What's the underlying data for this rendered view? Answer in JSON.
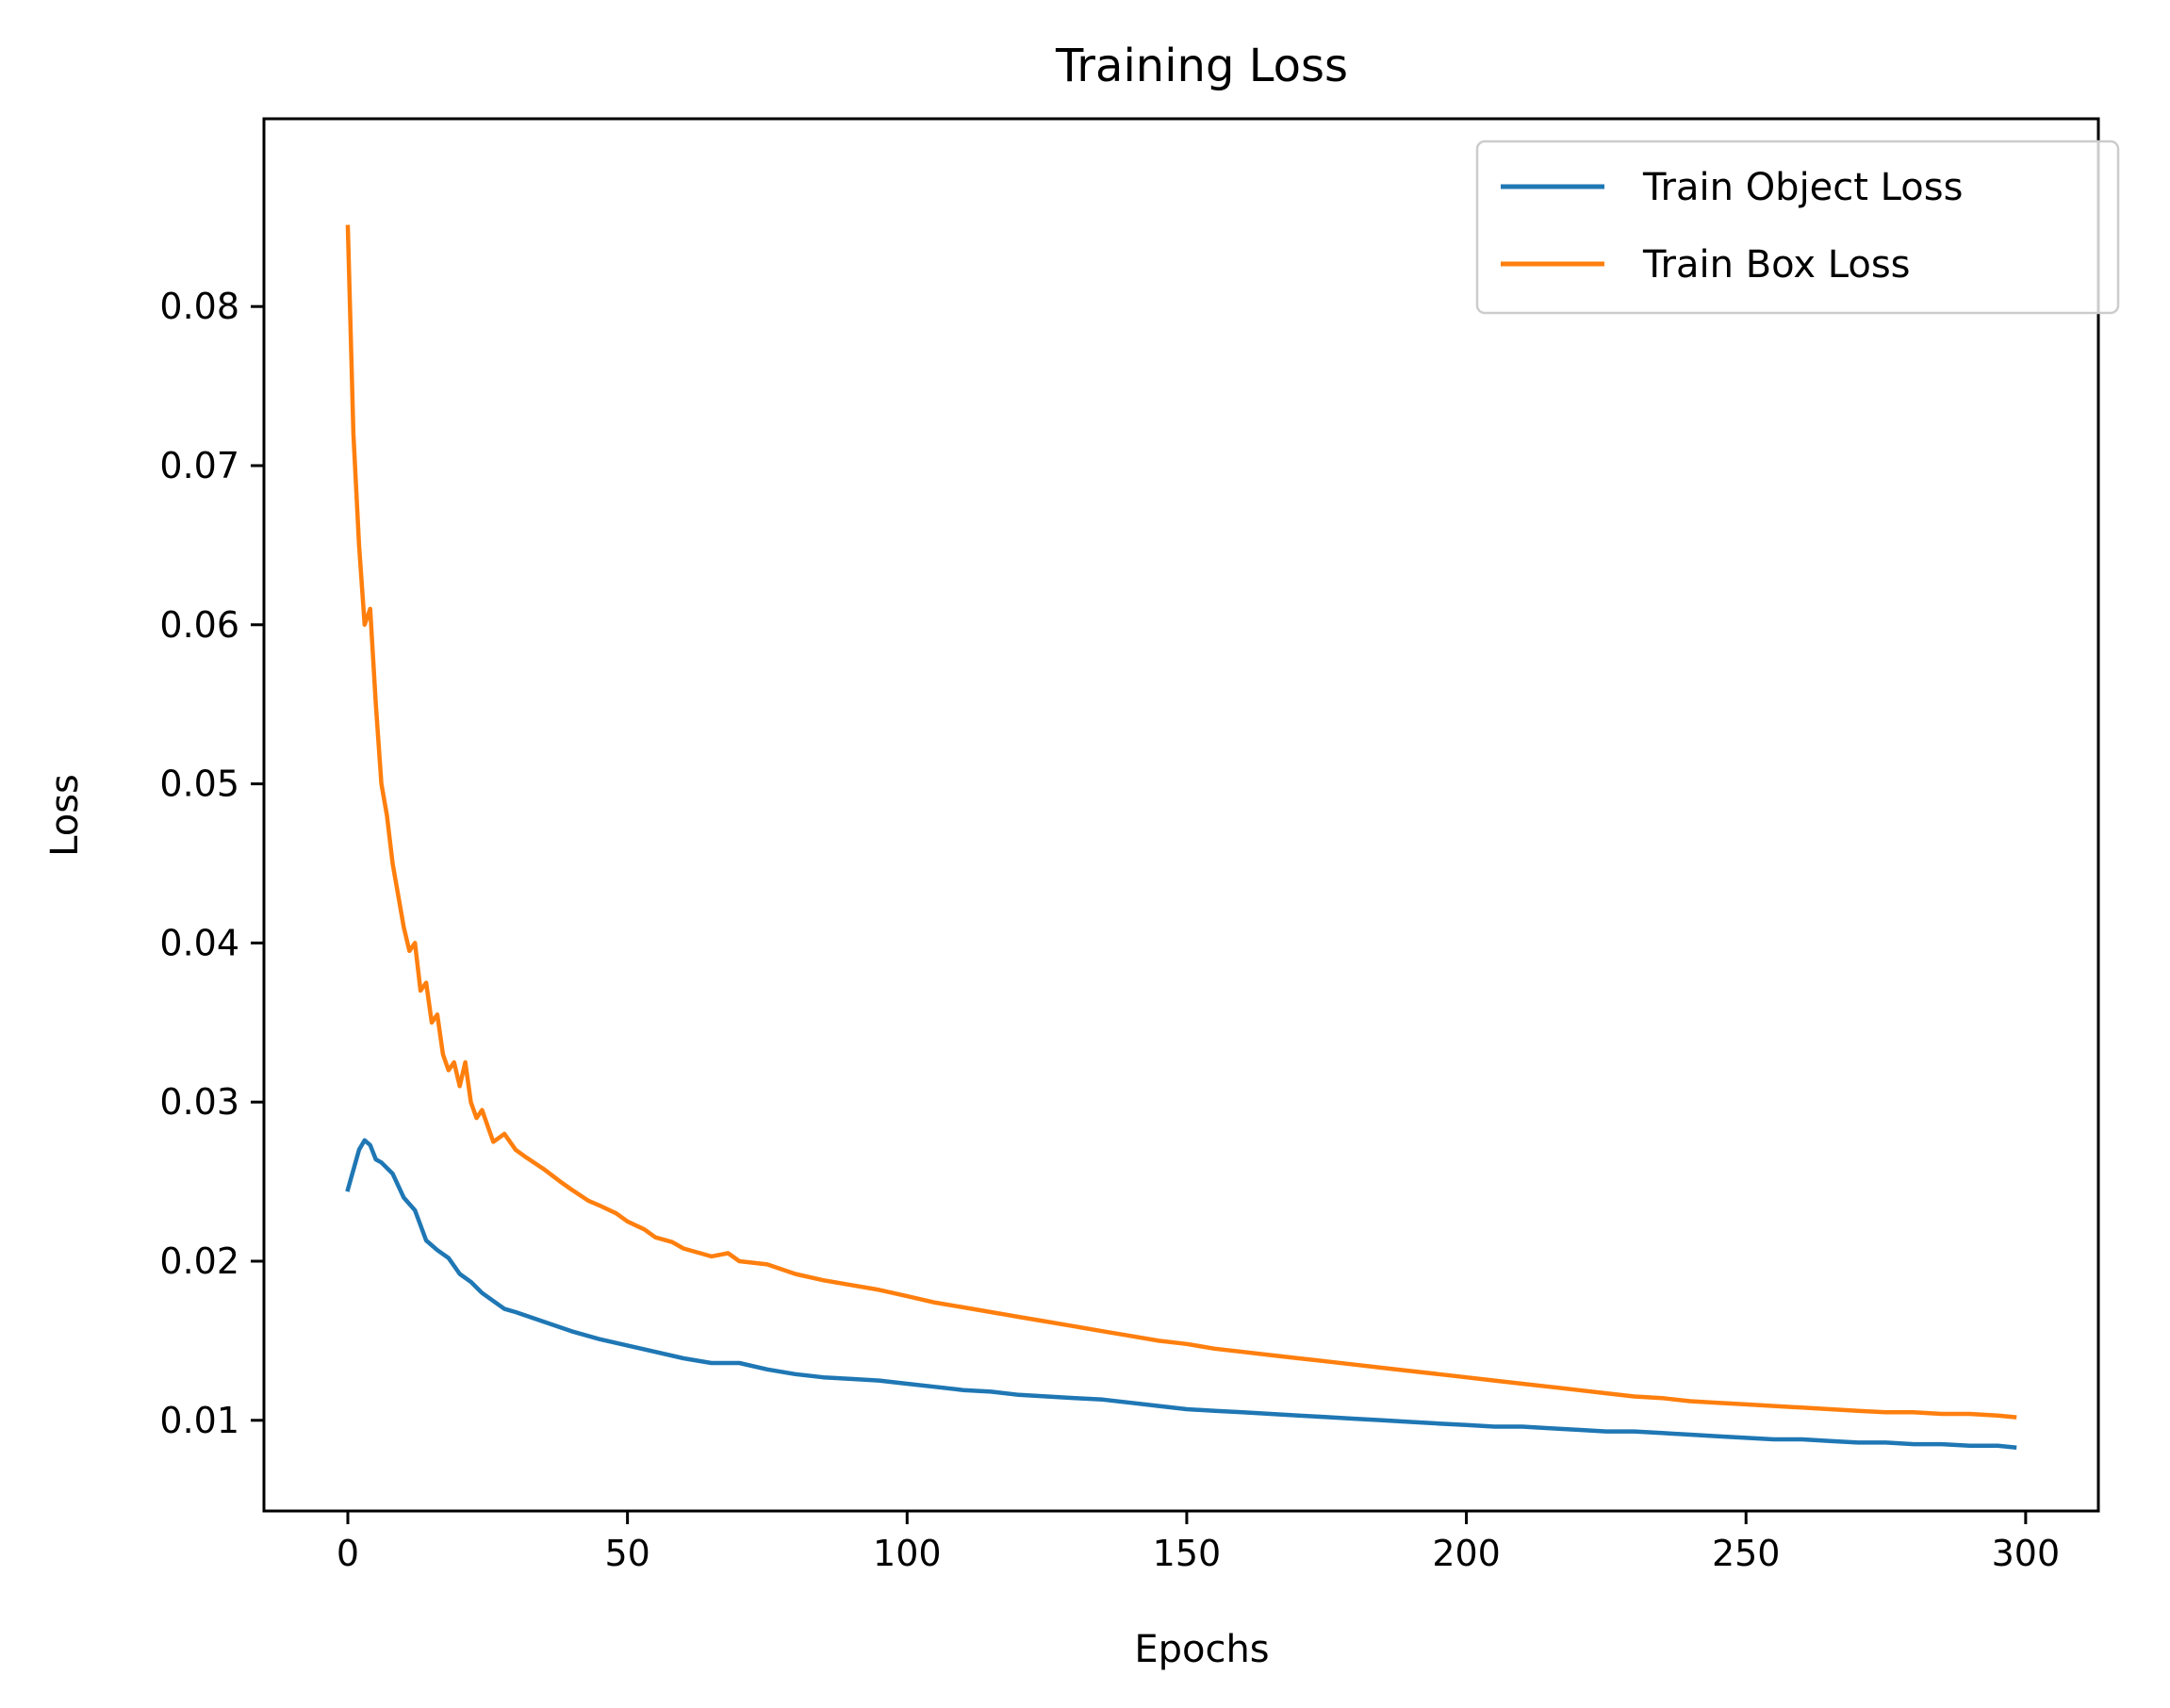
{
  "chart_data": {
    "type": "line",
    "title": "Training Loss",
    "xlabel": "Epochs",
    "ylabel": "Loss",
    "xlim": [
      -15,
      313
    ],
    "ylim": [
      0.0043,
      0.0918
    ],
    "xticks": [
      0,
      50,
      100,
      150,
      200,
      250,
      300
    ],
    "xtick_labels": [
      "0",
      "50",
      "100",
      "150",
      "200",
      "250",
      "300"
    ],
    "yticks": [
      0.01,
      0.02,
      0.03,
      0.04,
      0.05,
      0.06,
      0.07,
      0.08
    ],
    "ytick_labels": [
      "0.01",
      "0.02",
      "0.03",
      "0.04",
      "0.05",
      "0.06",
      "0.07",
      "0.08"
    ],
    "grid": false,
    "legend_position": "top-right",
    "series": [
      {
        "name": "Train Object Loss",
        "color": "#1f77b4",
        "x": [
          0,
          2,
          3,
          4,
          5,
          6,
          8,
          10,
          12,
          14,
          16,
          18,
          20,
          22,
          24,
          26,
          28,
          30,
          35,
          40,
          45,
          50,
          55,
          60,
          65,
          70,
          75,
          80,
          85,
          90,
          95,
          100,
          105,
          110,
          115,
          120,
          125,
          130,
          135,
          140,
          145,
          150,
          155,
          160,
          165,
          170,
          175,
          180,
          185,
          190,
          195,
          200,
          205,
          210,
          215,
          220,
          225,
          230,
          235,
          240,
          245,
          250,
          255,
          260,
          265,
          270,
          275,
          280,
          285,
          290,
          295,
          298
        ],
        "y": [
          0.0245,
          0.027,
          0.0276,
          0.0273,
          0.0264,
          0.0262,
          0.0255,
          0.024,
          0.0232,
          0.0213,
          0.0207,
          0.0202,
          0.0192,
          0.0187,
          0.018,
          0.0175,
          0.017,
          0.0168,
          0.0162,
          0.0156,
          0.0151,
          0.0147,
          0.0143,
          0.0139,
          0.0136,
          0.0136,
          0.0132,
          0.0129,
          0.0127,
          0.0126,
          0.0125,
          0.0123,
          0.0121,
          0.0119,
          0.0118,
          0.0116,
          0.0115,
          0.0114,
          0.0113,
          0.0111,
          0.0109,
          0.0107,
          0.0106,
          0.0105,
          0.0104,
          0.0103,
          0.0102,
          0.0101,
          0.01,
          0.0099,
          0.0098,
          0.0097,
          0.0096,
          0.0096,
          0.0095,
          0.0094,
          0.0093,
          0.0093,
          0.0092,
          0.0091,
          0.009,
          0.0089,
          0.0088,
          0.0088,
          0.0087,
          0.0086,
          0.0086,
          0.0085,
          0.0085,
          0.0084,
          0.0084,
          0.0083
        ]
      },
      {
        "name": "Train Box Loss",
        "color": "#ff7f0e",
        "x": [
          0,
          1,
          2,
          3,
          4,
          5,
          6,
          7,
          8,
          9,
          10,
          11,
          12,
          13,
          14,
          15,
          16,
          17,
          18,
          19,
          20,
          21,
          22,
          23,
          24,
          25,
          26,
          28,
          30,
          32,
          35,
          38,
          40,
          43,
          45,
          48,
          50,
          53,
          55,
          58,
          60,
          63,
          65,
          68,
          70,
          75,
          80,
          85,
          90,
          95,
          100,
          105,
          110,
          115,
          120,
          125,
          130,
          135,
          140,
          145,
          150,
          155,
          160,
          165,
          170,
          175,
          180,
          185,
          190,
          195,
          200,
          205,
          210,
          215,
          220,
          225,
          230,
          235,
          240,
          245,
          250,
          255,
          260,
          265,
          270,
          275,
          280,
          285,
          290,
          295,
          298
        ],
        "y": [
          0.085,
          0.072,
          0.065,
          0.06,
          0.061,
          0.055,
          0.05,
          0.048,
          0.045,
          0.043,
          0.041,
          0.0395,
          0.04,
          0.037,
          0.0375,
          0.035,
          0.0355,
          0.033,
          0.032,
          0.0325,
          0.031,
          0.0325,
          0.03,
          0.029,
          0.0295,
          0.0285,
          0.0275,
          0.028,
          0.027,
          0.0265,
          0.0258,
          0.025,
          0.0245,
          0.0238,
          0.0235,
          0.023,
          0.0225,
          0.022,
          0.0215,
          0.0212,
          0.0208,
          0.0205,
          0.0203,
          0.0205,
          0.02,
          0.0198,
          0.0192,
          0.0188,
          0.0185,
          0.0182,
          0.0178,
          0.0174,
          0.0171,
          0.0168,
          0.0165,
          0.0162,
          0.0159,
          0.0156,
          0.0153,
          0.015,
          0.0148,
          0.0145,
          0.0143,
          0.0141,
          0.0139,
          0.0137,
          0.0135,
          0.0133,
          0.0131,
          0.0129,
          0.0127,
          0.0125,
          0.0123,
          0.0121,
          0.0119,
          0.0117,
          0.0115,
          0.0114,
          0.0112,
          0.0111,
          0.011,
          0.0109,
          0.0108,
          0.0107,
          0.0106,
          0.0105,
          0.0105,
          0.0104,
          0.0104,
          0.0103,
          0.0102
        ]
      }
    ]
  }
}
